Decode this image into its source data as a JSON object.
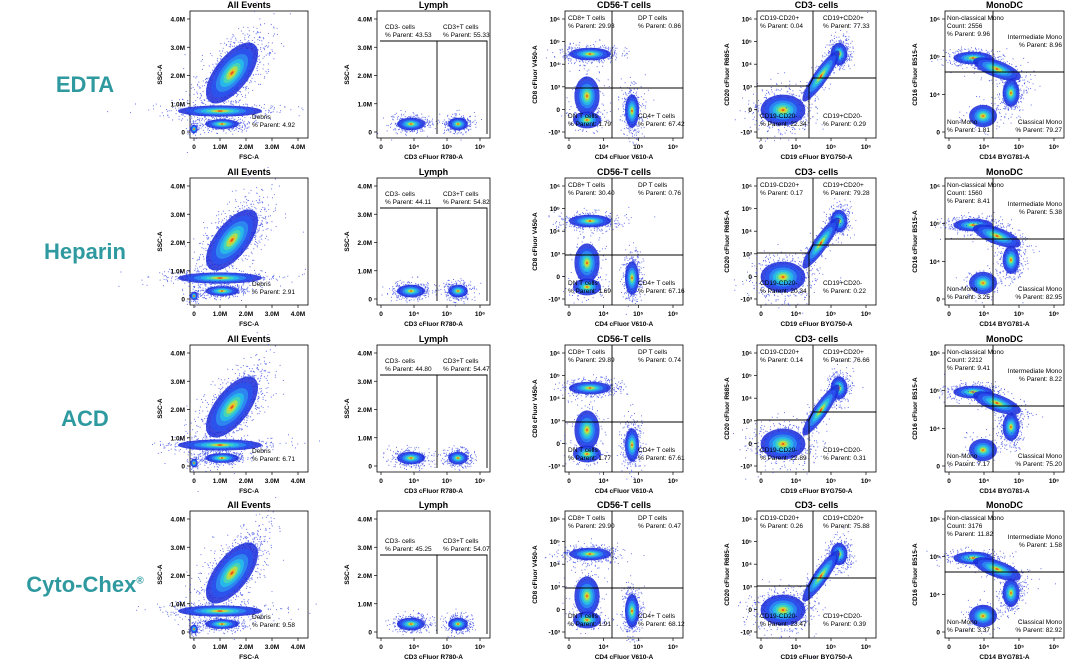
{
  "colors": {
    "row_label": "#2e9aa0",
    "gate_line": "#000000",
    "density_low": "#1a2bd8",
    "density_mid": "#27c0e8",
    "density_high": "#e83a1a"
  },
  "rows": [
    {
      "label": "EDTA",
      "superscript": ""
    },
    {
      "label": "Heparin",
      "superscript": ""
    },
    {
      "label": "ACD",
      "superscript": ""
    },
    {
      "label": "Cyto-Chex",
      "superscript": "®"
    }
  ],
  "chart_data": [
    {
      "type": "scatter",
      "panel": "all-events",
      "title": "All Events",
      "xlabel": "FSC-A",
      "ylabel": "SSC-A",
      "x_ticks": [
        "0",
        "1.0M",
        "2.0M",
        "3.0M",
        "4.0M"
      ],
      "y_ticks": [
        "0",
        "1.0M",
        "2.0M",
        "3.0M",
        "4.0M"
      ],
      "xlim": [
        0,
        4000000
      ],
      "ylim": [
        0,
        4000000
      ],
      "gates": [
        {
          "row": "EDTA",
          "name": "Debris",
          "parent_label": "% Parent:",
          "value": "4.92"
        },
        {
          "row": "Heparin",
          "name": "Debris",
          "parent_label": "% Parent:",
          "value": "2.91"
        },
        {
          "row": "ACD",
          "name": "Debris",
          "parent_label": "% Parent:",
          "value": "6.71"
        },
        {
          "row": "Cyto-Chex",
          "name": "Debris",
          "parent_label": "% Parent:",
          "value": "9.58"
        }
      ]
    },
    {
      "type": "scatter",
      "panel": "lymph",
      "title": "Lymph",
      "xlabel": "CD3 cFluor R780-A",
      "ylabel": "SSC-A",
      "x_ticks": [
        "0",
        "10⁴",
        "10⁵",
        "10⁶"
      ],
      "y_ticks": [
        "0",
        "1.0M",
        "2.0M",
        "3.0M",
        "4.0M"
      ],
      "series": [
        {
          "name": "CD3- cells",
          "values": [
            43.53,
            44.11,
            44.8,
            45.25
          ]
        },
        {
          "name": "CD3+T cells",
          "values": [
            55.33,
            54.82,
            54.47,
            54.07
          ]
        }
      ],
      "rows": [
        "EDTA",
        "Heparin",
        "ACD",
        "Cyto-Chex"
      ]
    },
    {
      "type": "scatter",
      "panel": "cd56-t",
      "title": "CD56-T cells",
      "xlabel": "CD4 cFluor V610-A",
      "ylabel": "CD8 cFluor V450-A",
      "x_ticks": [
        "0",
        "10⁴",
        "10⁵",
        "10⁶"
      ],
      "y_ticks": [
        "-10³",
        "0",
        "10³",
        "10⁴",
        "10⁵",
        "10⁶"
      ],
      "series": [
        {
          "name": "CD8+ T cells",
          "values": [
            29.93,
            30.4,
            29.89,
            29.9
          ]
        },
        {
          "name": "DP T cells",
          "values": [
            0.86,
            0.76,
            0.74,
            0.47
          ]
        },
        {
          "name": "DN T cells",
          "values": [
            1.79,
            1.69,
            1.77,
            1.91
          ]
        },
        {
          "name": "CD4+ T cells",
          "values": [
            67.42,
            67.16,
            67.61,
            68.12
          ]
        }
      ],
      "rows": [
        "EDTA",
        "Heparin",
        "ACD",
        "Cyto-Chex"
      ]
    },
    {
      "type": "scatter",
      "panel": "cd3-neg",
      "title": "CD3- cells",
      "xlabel": "CD19 cFluor BYG750-A",
      "ylabel": "CD20 cFluor R685-A",
      "x_ticks": [
        "0",
        "10⁴",
        "10⁵",
        "10⁶"
      ],
      "y_ticks": [
        "-10³",
        "0",
        "10³",
        "10⁴",
        "10⁵",
        "10⁶"
      ],
      "series": [
        {
          "name": "CD19-CD20+",
          "values": [
            0.04,
            0.17,
            0.14,
            0.26
          ]
        },
        {
          "name": "CD19+CD20+",
          "values": [
            77.33,
            79.28,
            76.66,
            75.88
          ]
        },
        {
          "name": "CD19-CD20-",
          "values": [
            22.34,
            20.34,
            22.89,
            23.47
          ]
        },
        {
          "name": "CD19+CD20-",
          "values": [
            0.29,
            0.22,
            0.31,
            0.39
          ]
        }
      ],
      "rows": [
        "EDTA",
        "Heparin",
        "ACD",
        "Cyto-Chex"
      ]
    },
    {
      "type": "scatter",
      "panel": "monodc",
      "title": "MonoDC",
      "xlabel": "CD14 BYG781-A",
      "ylabel": "CD16 cFluor B515-A",
      "x_ticks": [
        "0",
        "10⁴",
        "10⁵",
        "10⁶"
      ],
      "y_ticks": [
        "0",
        "10⁴",
        "10⁵",
        "10⁶"
      ],
      "nonclassical_counts": [
        "2556",
        "1560",
        "2212",
        "3176"
      ],
      "series": [
        {
          "name": "Non-classical Mono",
          "values": [
            9.96,
            8.41,
            9.41,
            11.82
          ]
        },
        {
          "name": "Intermediate Mono",
          "values": [
            8.96,
            5.38,
            8.22,
            1.58
          ]
        },
        {
          "name": "Non-Mono",
          "values": [
            1.81,
            3.25,
            7.17,
            3.37
          ]
        },
        {
          "name": "Classical Mono",
          "values": [
            79.27,
            82.95,
            75.2,
            82.92
          ]
        }
      ],
      "rows": [
        "EDTA",
        "Heparin",
        "ACD",
        "Cyto-Chex"
      ]
    }
  ],
  "labels": {
    "parent": "% Parent:",
    "count": "Count:"
  }
}
